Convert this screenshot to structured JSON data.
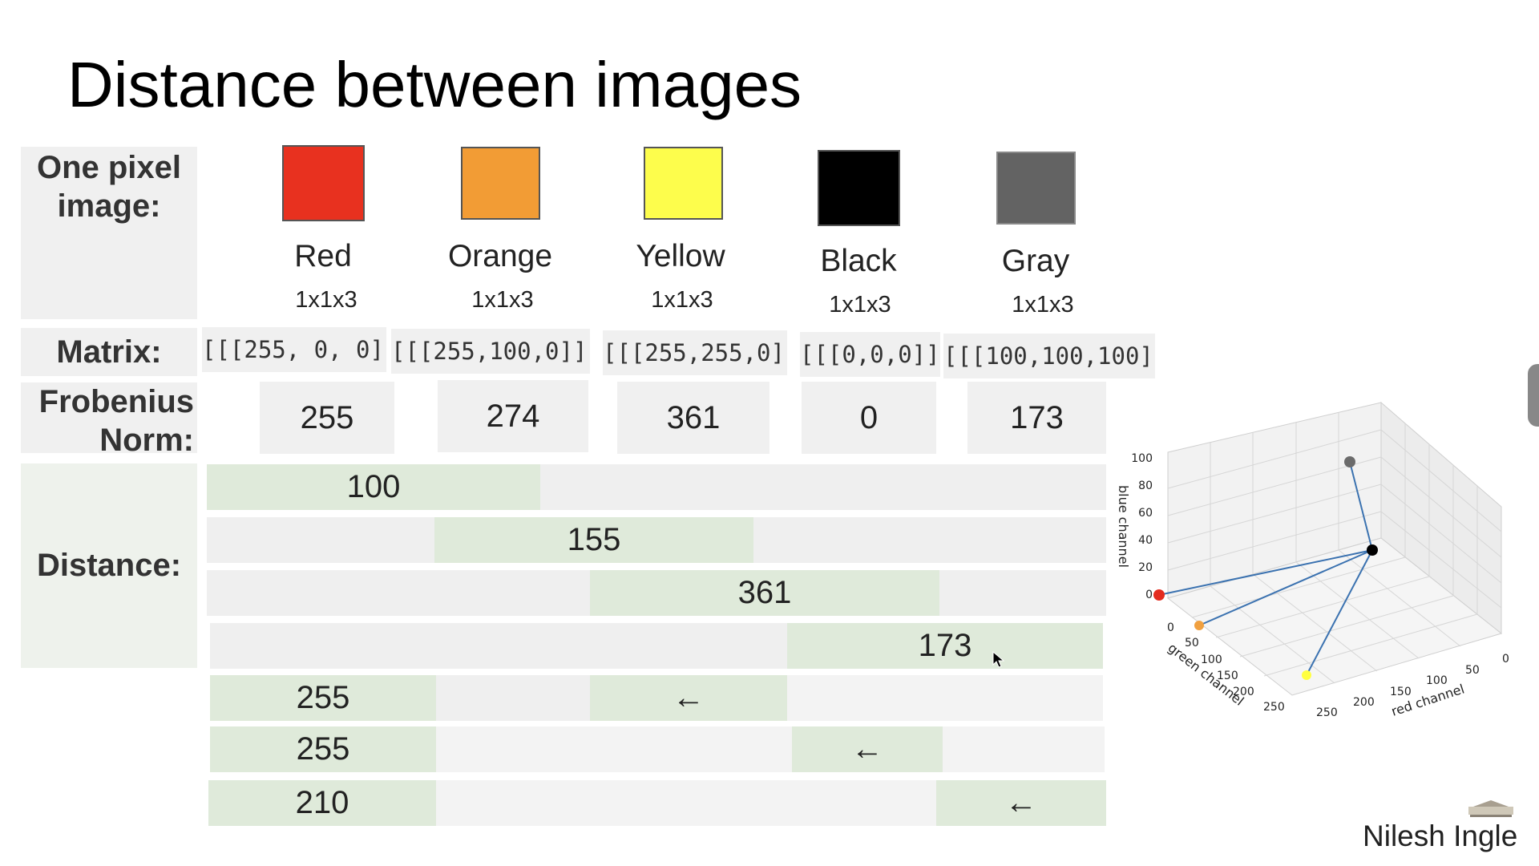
{
  "slide": {
    "title": "Distance between images",
    "author": "Nilesh Ingle"
  },
  "labels": {
    "pixel": "One pixel image:",
    "matrix": "Matrix:",
    "frobenius": "Frobenius Norm:",
    "distance": "Distance:"
  },
  "colors": [
    {
      "name": "Red",
      "dims": "1x1x3",
      "matrix": "[[[255, 0, 0]]]",
      "norm": "255",
      "hex": "#e8311f"
    },
    {
      "name": "Orange",
      "dims": "1x1x3",
      "matrix": "[[[255,100,0]]]",
      "norm": "274",
      "hex": "#f29c35"
    },
    {
      "name": "Yellow",
      "dims": "1x1x3",
      "matrix": "[[[255,255,0]]]",
      "norm": "361",
      "hex": "#fdfd4c"
    },
    {
      "name": "Black",
      "dims": "1x1x3",
      "matrix": "[[[0,0,0]]]",
      "norm": "0",
      "hex": "#000000"
    },
    {
      "name": "Gray",
      "dims": "1x1x3",
      "matrix": "[[[100,100,100]]]",
      "norm": "173",
      "hex": "#636363"
    }
  ],
  "distances": [
    {
      "value": "100",
      "arrow": ""
    },
    {
      "value": "155",
      "arrow": ""
    },
    {
      "value": "361",
      "arrow": ""
    },
    {
      "value": "173",
      "arrow": ""
    },
    {
      "value": "255",
      "arrow": "←"
    },
    {
      "value": "255",
      "arrow": "←"
    },
    {
      "value": "210",
      "arrow": "←"
    }
  ],
  "plot3d": {
    "xlabel": "red channel",
    "ylabel": "green channel",
    "zlabel": "blue channel",
    "x_ticks": [
      "250",
      "200",
      "150",
      "100",
      "50",
      "0"
    ],
    "y_ticks": [
      "0",
      "50",
      "100",
      "150",
      "200",
      "250"
    ],
    "z_ticks": [
      "0",
      "20",
      "40",
      "60",
      "80",
      "100"
    ]
  },
  "chart_data": {
    "type": "scatter",
    "title": "",
    "xlabel": "red channel",
    "ylabel": "green channel",
    "zlabel": "blue channel",
    "xlim": [
      0,
      250
    ],
    "ylim": [
      0,
      250
    ],
    "zlim": [
      0,
      100
    ],
    "grid": true,
    "points": [
      {
        "color": "Red",
        "r": 255,
        "g": 0,
        "b": 0
      },
      {
        "color": "Orange",
        "r": 255,
        "g": 100,
        "b": 0
      },
      {
        "color": "Yellow",
        "r": 255,
        "g": 255,
        "b": 0
      },
      {
        "color": "Black",
        "r": 0,
        "g": 0,
        "b": 0
      },
      {
        "color": "Gray",
        "r": 100,
        "g": 100,
        "b": 100
      }
    ],
    "connections": [
      [
        "Black",
        "Red"
      ],
      [
        "Black",
        "Orange"
      ],
      [
        "Black",
        "Yellow"
      ],
      [
        "Black",
        "Gray"
      ]
    ]
  }
}
